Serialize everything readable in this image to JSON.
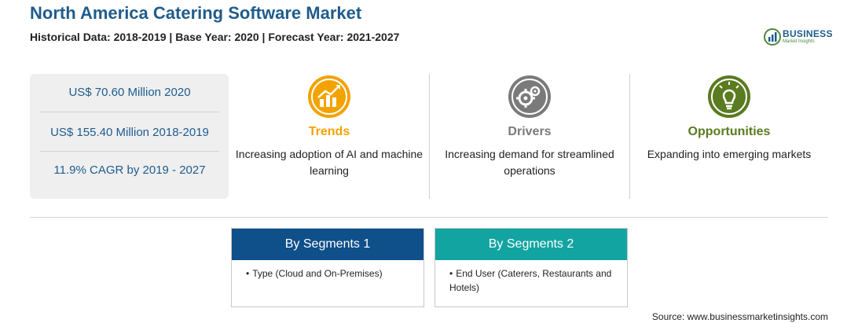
{
  "header": {
    "title": "North America Catering Software Market",
    "subtitle": "Historical Data: 2018-2019 | Base Year: 2020 | Forecast Year: 2021-2027"
  },
  "logo": {
    "word": "BUSINESS",
    "sub": "Market Insights"
  },
  "stats": [
    {
      "text": "US$ 70.60 Million 2020"
    },
    {
      "text": "US$ 155.40 Million 2018-2019"
    },
    {
      "text": "11.9% CAGR by 2019 - 2027"
    }
  ],
  "cards": [
    {
      "title": "Trends",
      "text": "Increasing adoption of AI and machine learning",
      "color": "#f2a300",
      "icon": "chart-growth-icon"
    },
    {
      "title": "Drivers",
      "text": "Increasing demand for streamlined operations",
      "color": "#7a7a7a",
      "icon": "gears-icon"
    },
    {
      "title": "Opportunities",
      "text": "Expanding into emerging markets",
      "color": "#5a7b1f",
      "icon": "lightbulb-icon"
    }
  ],
  "segments": [
    {
      "title": "By Segments 1",
      "color": "#0f4f8a",
      "items": [
        "Type (Cloud and On-Premises)"
      ]
    },
    {
      "title": "By Segments 2",
      "color": "#12a4a1",
      "items": [
        "End User (Caterers, Restaurants and Hotels)"
      ]
    }
  ],
  "source": "Source: www.businessmarketinsights.com"
}
